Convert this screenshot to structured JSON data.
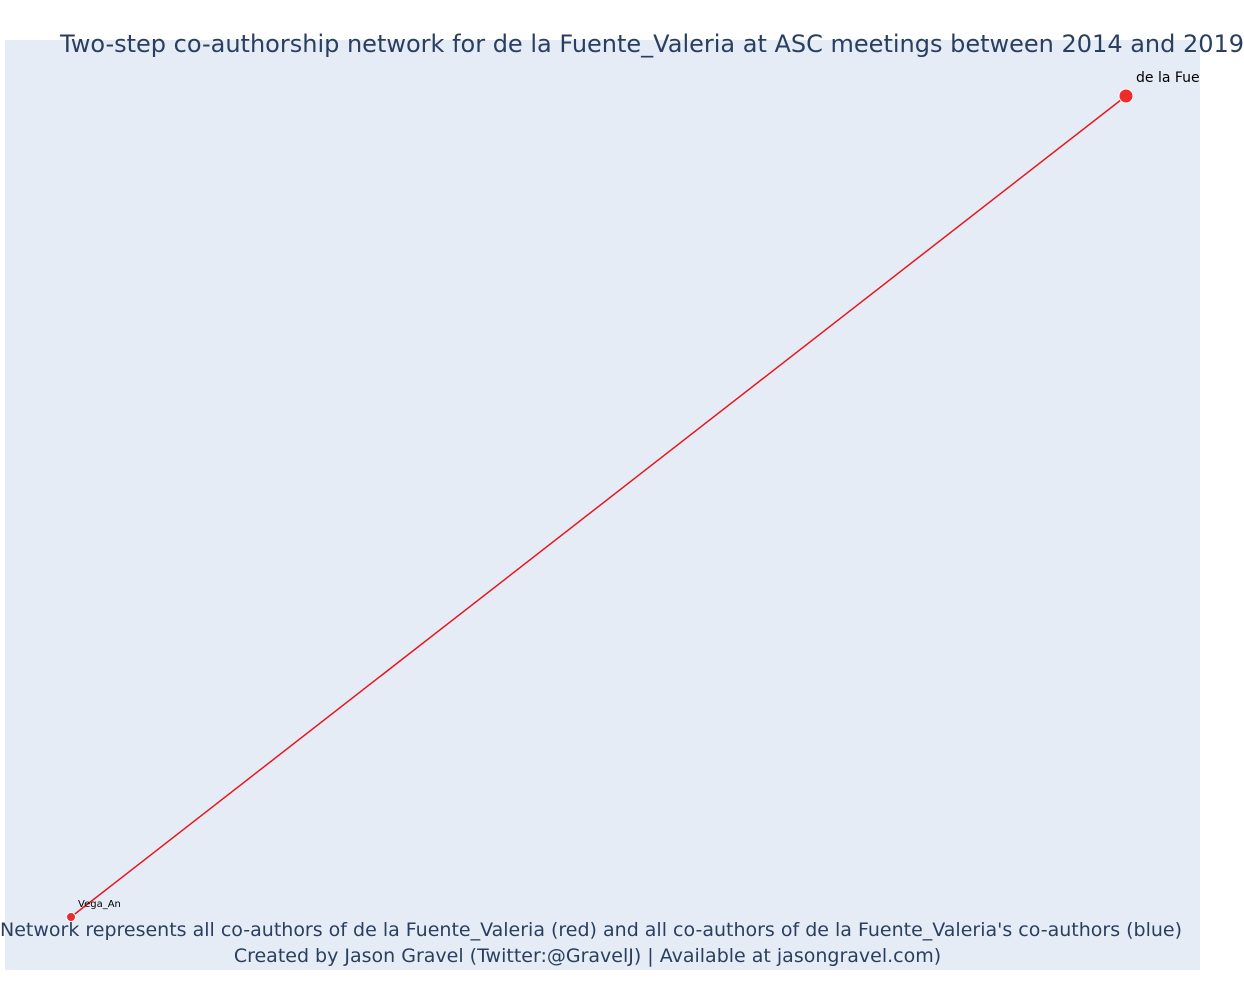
{
  "title": "Two-step co-authorship network for de la Fuente_Valeria at ASC meetings between 2014 and 2019",
  "caption": {
    "line1": "Network represents all co-authors of de la Fuente_Valeria (red) and all co-authors of de la Fuente_Valeria's co-authors (blue)",
    "line2": "Created by Jason Gravel (Twitter:@GravelJ) | Available at jasongravel.com)"
  },
  "colors": {
    "background": "#e5ecf6",
    "first_step": "#ef2b2b",
    "edge": "#e8161c",
    "text": "#2a3f5f"
  },
  "network": {
    "nodes": [
      {
        "id": "focal",
        "label": "de la Fue",
        "group": "red",
        "size": "large"
      },
      {
        "id": "coauthor",
        "label": "Vega_An",
        "group": "red",
        "size": "small"
      }
    ],
    "edges": [
      {
        "source": "focal",
        "target": "coauthor",
        "color": "#e8161c"
      }
    ]
  }
}
